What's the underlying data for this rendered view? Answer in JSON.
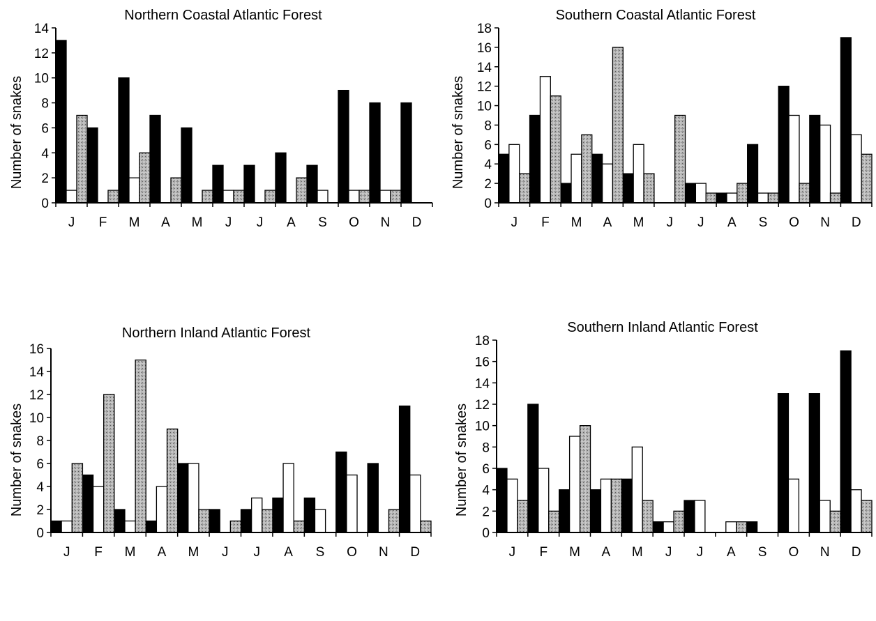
{
  "colors": {
    "series_a": "#000000",
    "series_b": "#ffffff",
    "series_c_pattern": "stippled grey",
    "axis": "#000000"
  },
  "chart_data": [
    {
      "type": "bar",
      "title": "Northern Coastal Atlantic Forest",
      "ylabel": "Number of snakes",
      "xlabel": "",
      "ylim": [
        0,
        14
      ],
      "yticks": [
        "0",
        "2",
        "4",
        "6",
        "8",
        "10",
        "12",
        "14"
      ],
      "categories": [
        "J",
        "F",
        "M",
        "A",
        "M",
        "J",
        "J",
        "A",
        "S",
        "O",
        "N",
        "D"
      ],
      "series": [
        {
          "style": "solid-black",
          "values": [
            13,
            6,
            10,
            7,
            6,
            3,
            3,
            4,
            3,
            9,
            8,
            8
          ]
        },
        {
          "style": "white",
          "values": [
            1,
            0,
            2,
            0,
            0,
            1,
            0,
            0,
            1,
            1,
            1,
            0
          ]
        },
        {
          "style": "stippled",
          "values": [
            7,
            1,
            4,
            2,
            1,
            1,
            1,
            2,
            0,
            1,
            1,
            0
          ]
        }
      ],
      "grid": false,
      "legend": "none"
    },
    {
      "type": "bar",
      "title": "Southern Coastal Atlantic Forest",
      "ylabel": "Number of snakes",
      "xlabel": "",
      "ylim": [
        0,
        18
      ],
      "yticks": [
        "0",
        "2",
        "4",
        "6",
        "8",
        "10",
        "12",
        "14",
        "16",
        "18"
      ],
      "categories": [
        "J",
        "F",
        "M",
        "A",
        "M",
        "J",
        "J",
        "A",
        "S",
        "O",
        "N",
        "D"
      ],
      "series": [
        {
          "style": "solid-black",
          "values": [
            5,
            9,
            2,
            5,
            3,
            0,
            2,
            1,
            6,
            12,
            9,
            17
          ]
        },
        {
          "style": "white",
          "values": [
            6,
            13,
            5,
            4,
            6,
            0,
            2,
            1,
            1,
            9,
            8,
            7
          ]
        },
        {
          "style": "stippled",
          "values": [
            3,
            11,
            7,
            16,
            3,
            9,
            1,
            2,
            1,
            2,
            1,
            5
          ]
        }
      ],
      "grid": false,
      "legend": "none"
    },
    {
      "type": "bar",
      "title": "Northern Inland Atlantic Forest",
      "ylabel": "Number of snakes",
      "xlabel": "",
      "ylim": [
        0,
        16
      ],
      "yticks": [
        "0",
        "2",
        "4",
        "6",
        "8",
        "10",
        "12",
        "14",
        "16"
      ],
      "categories": [
        "J",
        "F",
        "M",
        "A",
        "M",
        "J",
        "J",
        "A",
        "S",
        "O",
        "N",
        "D"
      ],
      "series": [
        {
          "style": "solid-black",
          "values": [
            1,
            5,
            2,
            1,
            6,
            2,
            2,
            3,
            3,
            7,
            6,
            11
          ]
        },
        {
          "style": "white",
          "values": [
            1,
            4,
            1,
            4,
            6,
            0,
            3,
            6,
            2,
            5,
            0,
            5
          ]
        },
        {
          "style": "stippled",
          "values": [
            6,
            12,
            15,
            9,
            2,
            1,
            2,
            1,
            0,
            0,
            2,
            1
          ]
        }
      ],
      "grid": false,
      "legend": "none"
    },
    {
      "type": "bar",
      "title": "Southern Inland Atlantic Forest",
      "ylabel": "Number of snakes",
      "xlabel": "",
      "ylim": [
        0,
        18
      ],
      "yticks": [
        "0",
        "2",
        "4",
        "6",
        "8",
        "10",
        "12",
        "14",
        "16",
        "18"
      ],
      "categories": [
        "J",
        "F",
        "M",
        "A",
        "M",
        "J",
        "J",
        "A",
        "S",
        "O",
        "N",
        "D"
      ],
      "series": [
        {
          "style": "solid-black",
          "values": [
            6,
            12,
            4,
            4,
            5,
            1,
            3,
            0,
            1,
            13,
            13,
            17
          ]
        },
        {
          "style": "white",
          "values": [
            5,
            6,
            9,
            5,
            8,
            1,
            3,
            1,
            0,
            5,
            3,
            4
          ]
        },
        {
          "style": "stippled",
          "values": [
            3,
            2,
            10,
            5,
            3,
            2,
            0,
            1,
            0,
            0,
            2,
            3
          ]
        }
      ],
      "grid": false,
      "legend": "none"
    }
  ]
}
